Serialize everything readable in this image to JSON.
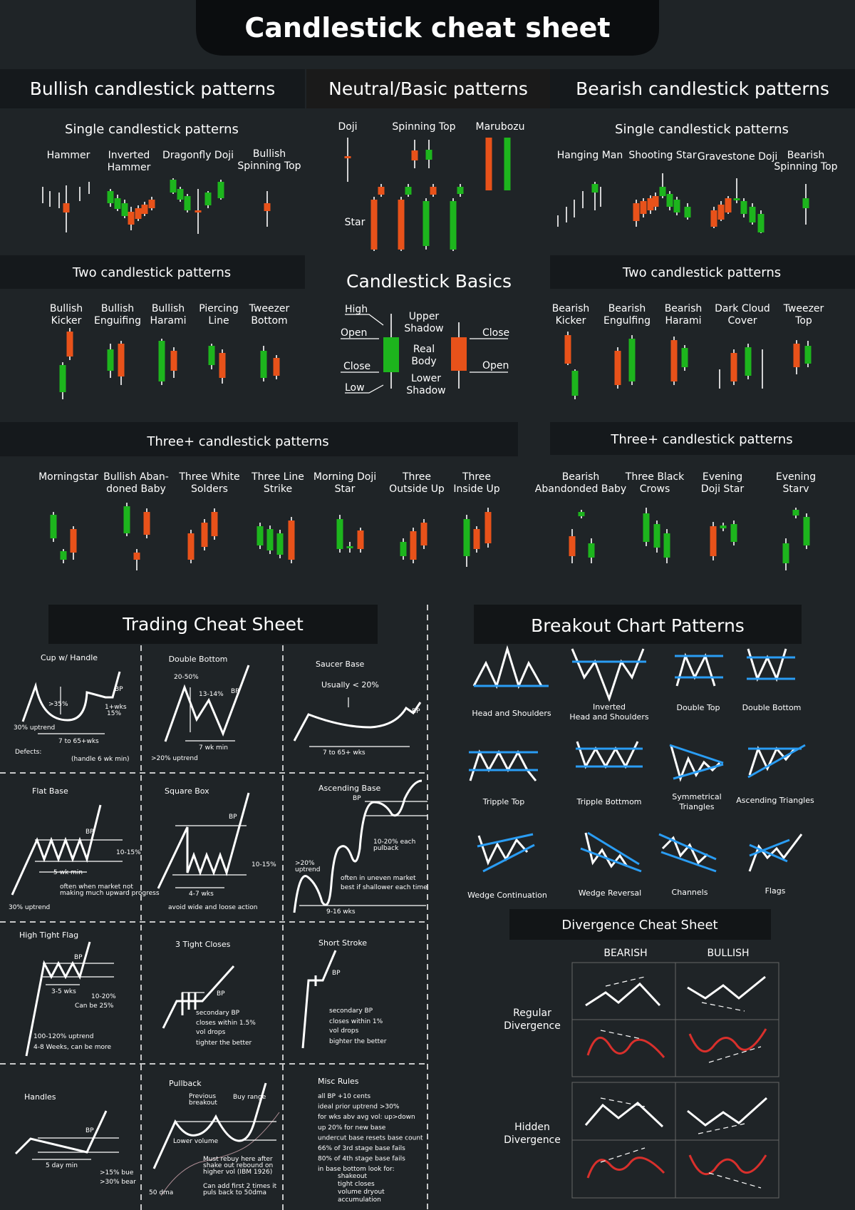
{
  "title": "Candlestick cheat sheet",
  "colors": {
    "bull": "#1db51d",
    "bear": "#e8521a",
    "blue": "#2a9df4",
    "red": "#d9302c",
    "bg": "#1f2427"
  },
  "sections": {
    "bullish": "Bullish candlestick patterns",
    "neutral": "Neutral/Basic patterns",
    "bearish": "Bearish candlestick patterns"
  },
  "sub": {
    "single": "Single candlestick patterns",
    "two": "Two candlestick patterns",
    "three": "Three+ candlestick patterns"
  },
  "bull_single": [
    "Hammer",
    "Inverted",
    "Hammer",
    "Dragonfly Doji",
    "Bullish",
    "Spinning Top"
  ],
  "neutral": {
    "doji": "Doji",
    "spinning": "Spinning Top",
    "marubozu": "Marubozu",
    "star": "Star",
    "basics": "Candlestick Basics",
    "high": "High",
    "open": "Open",
    "close": "Close",
    "low": "Low",
    "upper1": "Upper",
    "upper2": "Shadow",
    "real1": "Real",
    "real2": "Body",
    "lower1": "Lower",
    "lower2": "Shadow",
    "close2": "Close",
    "open2": "Open"
  },
  "bear_single": [
    "Hanging Man",
    "Shooting Star",
    "Gravestone Doji",
    "Bearish",
    "Spinning Top"
  ],
  "bull_two": [
    [
      "Bullish",
      "Kicker"
    ],
    [
      "Bullish",
      "Enguifing"
    ],
    [
      "Bullish",
      "Harami"
    ],
    [
      "Piercing",
      "Line"
    ],
    [
      "Tweezer",
      "Bottom"
    ]
  ],
  "bear_two": [
    [
      "Bearish",
      "Kicker"
    ],
    [
      "Bearish",
      "Engulfing"
    ],
    [
      "Bearish",
      "Harami"
    ],
    [
      "Dark Cloud",
      "Cover"
    ],
    [
      "Tweezer",
      "Top"
    ]
  ],
  "bull_three": [
    [
      "Morningstar",
      ""
    ],
    [
      "Bullish Aban-",
      "doned Baby"
    ],
    [
      "Three White",
      "Solders"
    ],
    [
      "Three Line",
      "Strike"
    ],
    [
      "Morning Doji",
      "Star"
    ],
    [
      "Three",
      "Outside Up"
    ],
    [
      "Three",
      "Inside Up"
    ]
  ],
  "bear_three": [
    [
      "Bearish",
      "Abandonded Baby"
    ],
    [
      "Three Black",
      "Crows"
    ],
    [
      "Evening",
      "Doji Star"
    ],
    [
      "Evening",
      "Starv"
    ]
  ],
  "trading": {
    "title": "Trading Cheat Sheet",
    "cup": {
      "t": "Cup w/ Handle",
      "a": ">35%",
      "b": "1+wks",
      "c": "15%",
      "d": "BP",
      "e": "30% uptrend",
      "f": "7 to 65+wks",
      "g": "Defects:",
      "h": "(handle 6 wk min)"
    },
    "dbl": {
      "t": "Double Bottom",
      "a": "20-50%",
      "b": "13-14%",
      "c": "BP",
      "d": "7 wk min",
      "e": ">20% uptrend"
    },
    "saucer": {
      "t": "Saucer Base",
      "a": "Usually < 20%",
      "b": "BP",
      "c": "7 to 65+ wks"
    },
    "flat": {
      "t": "Flat Base",
      "a": "BP",
      "b": "10-15%",
      "c": "5 wk min",
      "d": "often when market not",
      "e": "making much upward progress",
      "f": "30% uptrend"
    },
    "square": {
      "t": "Square Box",
      "a": "BP",
      "b": "10-15%",
      "c": "4-7 wks",
      "d": "avoid wide and loose action"
    },
    "asc": {
      "t": "Ascending Base",
      "a": "BP",
      "b": "10-20% each",
      "c": "pulback",
      "d": ">20%",
      "e": "uptrend",
      "f": "often in uneven market",
      "g": "best if shallower each time",
      "h": "9-16 wks"
    },
    "htf": {
      "t": "High Tight Flag",
      "a": "BP",
      "b": "3-5 wks",
      "c": "10-20%",
      "d": "Can be 25%",
      "e": "100-120% uptrend",
      "f": "4-8 Weeks, can be more"
    },
    "ttc": {
      "t": "3 Tight Closes",
      "a": "BP",
      "b": "secondary BP",
      "c": "closes within 1.5%",
      "d": "vol drops",
      "e": "tighter the better"
    },
    "ss": {
      "t": "Short Stroke",
      "a": "BP",
      "b": "secondary BP",
      "c": "closes within 1%",
      "d": "vol drops",
      "e": "bighter the better"
    },
    "handles": {
      "t": "Handles",
      "a": "BP",
      "b": "5 day min",
      "c": ">15% bue",
      "d": ">30% bear"
    },
    "pull": {
      "t": "Pullback",
      "a": "Previous",
      "b": "breakout",
      "c": "Buy range",
      "d": "Lower volume",
      "e": "Must rebuy here after",
      "f": "shake out rebound on",
      "g": "higher vol (IBM 1926)",
      "h": "Can add first 2 times it",
      "i": "puls back to 50dma",
      "j": "50 dma"
    },
    "misc": {
      "t": "Misc Rules",
      "rules": [
        "all BP +10 cents",
        "ideal prior uptrend >30%",
        "for wks abv avg vol: up>down",
        "up 20% for new base",
        "undercut base resets base count",
        "66% of 3rd stage base fails",
        "80% of 4th stage base fails",
        "in base bottom look for:"
      ],
      "look": [
        "shakeout",
        "tight closes",
        "volume dryout",
        "accumulation"
      ]
    }
  },
  "breakout": {
    "title": "Breakout Chart Patterns",
    "items": [
      [
        "Head and Shoulders",
        ""
      ],
      [
        "Inverted",
        "Head and Shoulders"
      ],
      [
        "Double Top",
        ""
      ],
      [
        "Double Bottom",
        ""
      ],
      [
        "Tripple Top",
        ""
      ],
      [
        "Tripple Bottmom",
        ""
      ],
      [
        "Symmetrical",
        "Triangles"
      ],
      [
        "Ascending Triangles",
        ""
      ],
      [
        "Wedge Continuation",
        ""
      ],
      [
        "Wedge Reversal",
        ""
      ],
      [
        "Channels",
        ""
      ],
      [
        "Flags",
        ""
      ]
    ]
  },
  "divergence": {
    "title": "Divergence Cheat Sheet",
    "bearish": "BEARISH",
    "bullish": "BULLISH",
    "regular1": "Regular",
    "regular2": "Divergence",
    "hidden1": "Hidden",
    "hidden2": "Divergence"
  }
}
